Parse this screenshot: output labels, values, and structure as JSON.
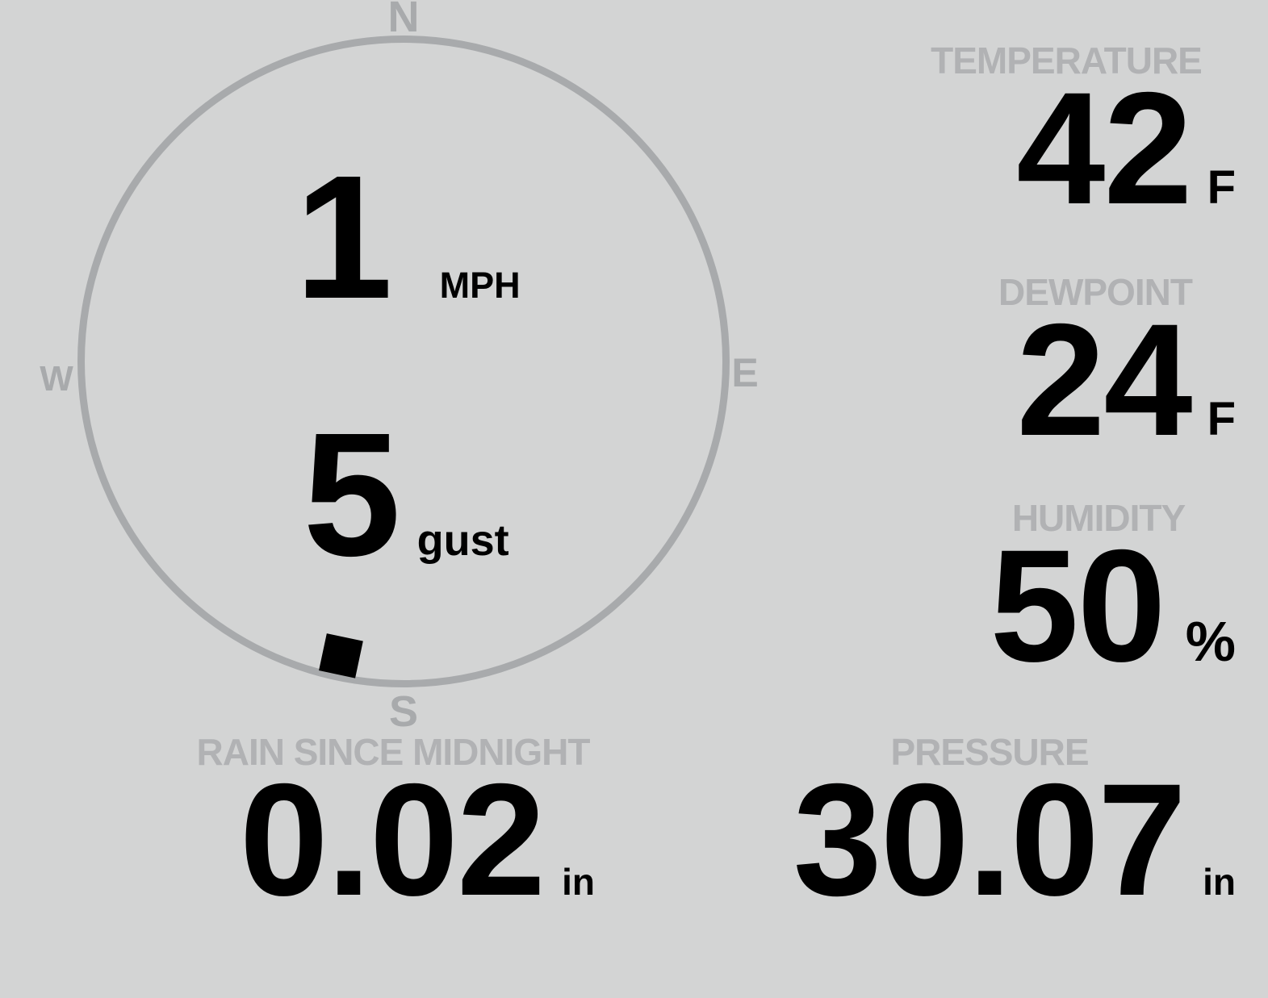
{
  "colors": {
    "background": "#d3d4d4",
    "compass": "#a8aaac",
    "label": "#b1b2b4",
    "value": "#000000"
  },
  "compass": {
    "cardinals": {
      "north": "N",
      "east": "E",
      "south": "S",
      "west": "W"
    },
    "wind_speed": {
      "value": "1",
      "unit": "MPH"
    },
    "wind_gust": {
      "value": "5",
      "unit": "gust"
    },
    "wind_direction_deg": 192
  },
  "readings": {
    "temperature": {
      "label": "TEMPERATURE",
      "value": "42",
      "unit": "F"
    },
    "dewpoint": {
      "label": "DEWPOINT",
      "value": "24",
      "unit": "F"
    },
    "humidity": {
      "label": "HUMIDITY",
      "value": "50",
      "unit": "%"
    },
    "rain_since_midnight": {
      "label": "RAIN SINCE MIDNIGHT",
      "value": "0.02",
      "unit": "in"
    },
    "pressure": {
      "label": "PRESSURE",
      "value": "30.07",
      "unit": "in"
    }
  }
}
